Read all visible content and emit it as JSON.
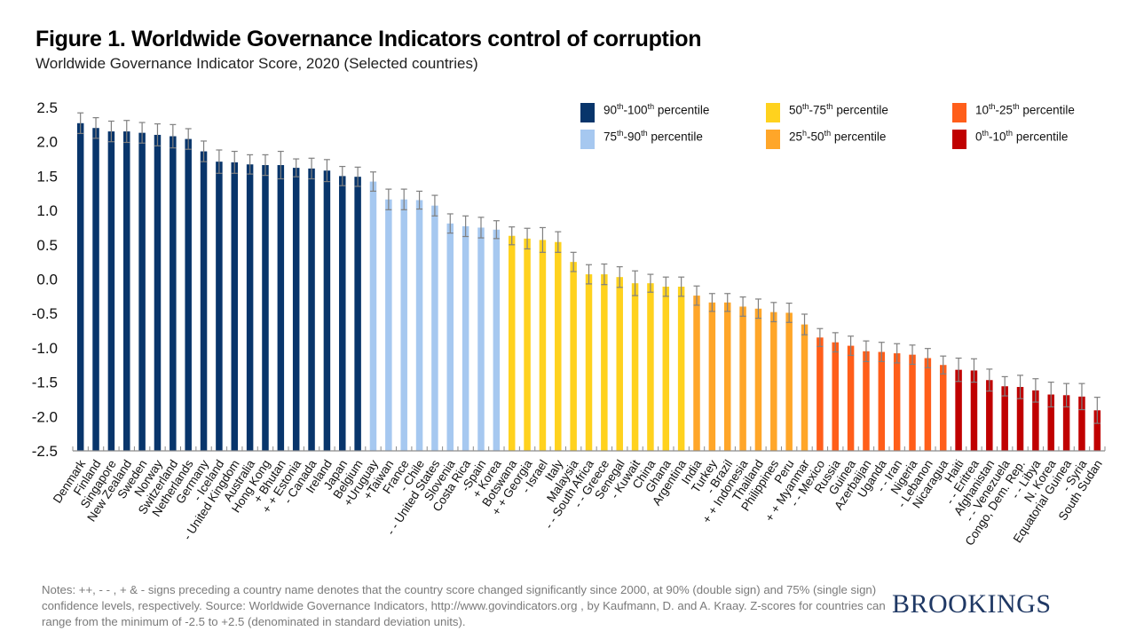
{
  "header": {
    "title": "Figure 1. Worldwide Governance Indicators control of corruption",
    "subtitle": "Worldwide Governance Indicator Score, 2020 (Selected countries)"
  },
  "footer": {
    "notes": "Notes: ++, - - , + & -  signs preceding a country name denotes that the country score changed significantly since 2000, at 90% (double sign) and 75% (single sign) confidence levels, respectively.  Source: Worldwide Governance Indicators, http://www.govindicators.org , by  Kaufmann, D. and A. Kraay. Z-scores for countries can range from the minimum of -2.5 to +2.5 (denominated in standard deviation units).",
    "brand": "BROOKINGS"
  },
  "chart_data": {
    "type": "bar",
    "title": "Figure 1. Worldwide Governance Indicators control of corruption",
    "subtitle": "Worldwide Governance Indicator Score, 2020 (Selected countries)",
    "xlabel": "",
    "ylabel": "",
    "ylim": [
      -2.5,
      2.5
    ],
    "yticks": [
      "2.5",
      "2.0",
      "1.5",
      "1.0",
      "0.5",
      "0.0",
      "-0.5",
      "-1.0",
      "-1.5",
      "-2.0",
      "-2.5"
    ],
    "ytick_values": [
      2.5,
      2.0,
      1.5,
      1.0,
      0.5,
      0.0,
      -0.5,
      -1.0,
      -1.5,
      -2.0,
      -2.5
    ],
    "grid": false,
    "legend_position": "top-right",
    "error_bars": true,
    "error_bar_color": "#808080",
    "groups": [
      {
        "key": "p90",
        "label_base": "90",
        "label_sup1": "th",
        "label_mid": "-100",
        "label_sup2": "th",
        "label_end": " percentile",
        "color": "#08356B"
      },
      {
        "key": "p75",
        "label_base": "75",
        "label_sup1": "th",
        "label_mid": "-90",
        "label_sup2": "th",
        "label_end": " percentile",
        "color": "#A6C8F0"
      },
      {
        "key": "p50",
        "label_base": "50",
        "label_sup1": "th",
        "label_mid": "-75",
        "label_sup2": "th",
        "label_end": " percentile",
        "color": "#FFD21E"
      },
      {
        "key": "p25",
        "label_base": "25",
        "label_sup1": "h",
        "label_mid": "-50",
        "label_sup2": "th",
        "label_end": " percentile",
        "color": "#FFA629"
      },
      {
        "key": "p10",
        "label_base": "10",
        "label_sup1": "th",
        "label_mid": "-25",
        "label_sup2": "th",
        "label_end": " percentile",
        "color": "#FF5E1A"
      },
      {
        "key": "p0",
        "label_base": "0",
        "label_sup1": "th",
        "label_mid": "-10",
        "label_sup2": "th",
        "label_end": " percentile",
        "color": "#C00000"
      }
    ],
    "categories": [
      "Denmark",
      "Finland",
      "Singapore",
      "New Zealand",
      "Sweden",
      "Norway",
      "Switzerland",
      "Netherlands",
      "Germany",
      "- Iceland",
      "- United Kingdom",
      "Australia",
      "Hong Kong",
      "+ Bhutan",
      "+ + Estonia",
      "- Canada",
      "Ireland",
      "Japan",
      "Belgium",
      "+Uruguay",
      "+Taiwan",
      "France",
      "- Chile",
      "- - United States",
      "Slovenia",
      "Costa Rica",
      "-Spain",
      "+ Korea",
      "Botswana",
      "+ + Georgia",
      "- Israel",
      "Italy",
      "Malaysia",
      "- - South Africa",
      "- - Greece",
      "Senegal",
      "- Kuwait",
      "China",
      "Ghana",
      "Argentina",
      "India",
      "Turkey",
      "- Brazil",
      "+ + Indonesia",
      "Thailand",
      "Philippines",
      "Peru",
      "+ + Myanmar",
      "- - Mexico",
      "Russia",
      "Guinea",
      "Azerbaijan",
      "Uganda",
      "- - Iran",
      "Nigeria",
      "- Lebanon",
      "Nicaragua",
      "Haiti",
      "- - Eritrea",
      "Afghanistan",
      "- - Venezuela",
      "Congo, Dem. Rep.",
      "- - Libya",
      "N. Korea",
      "Equatorial Guinea",
      "- Syria",
      "South Sudan"
    ],
    "values": [
      2.27,
      2.2,
      2.15,
      2.15,
      2.13,
      2.1,
      2.08,
      2.04,
      1.86,
      1.71,
      1.7,
      1.67,
      1.66,
      1.66,
      1.62,
      1.61,
      1.58,
      1.5,
      1.49,
      1.42,
      1.16,
      1.16,
      1.15,
      1.07,
      0.81,
      0.77,
      0.75,
      0.72,
      0.63,
      0.59,
      0.57,
      0.54,
      0.25,
      0.07,
      0.07,
      0.03,
      -0.06,
      -0.06,
      -0.11,
      -0.11,
      -0.24,
      -0.34,
      -0.34,
      -0.4,
      -0.43,
      -0.48,
      -0.49,
      -0.66,
      -0.85,
      -0.92,
      -0.97,
      -1.05,
      -1.06,
      -1.08,
      -1.1,
      -1.15,
      -1.25,
      -1.32,
      -1.33,
      -1.47,
      -1.56,
      -1.57,
      -1.62,
      -1.68,
      -1.69,
      -1.71,
      -1.91
    ],
    "error_margins": [
      0.15,
      0.15,
      0.15,
      0.16,
      0.15,
      0.16,
      0.17,
      0.15,
      0.15,
      0.17,
      0.16,
      0.14,
      0.15,
      0.2,
      0.13,
      0.15,
      0.16,
      0.14,
      0.14,
      0.14,
      0.15,
      0.15,
      0.13,
      0.15,
      0.14,
      0.15,
      0.15,
      0.13,
      0.13,
      0.15,
      0.18,
      0.15,
      0.14,
      0.14,
      0.15,
      0.15,
      0.18,
      0.13,
      0.14,
      0.14,
      0.14,
      0.13,
      0.13,
      0.14,
      0.14,
      0.14,
      0.14,
      0.15,
      0.13,
      0.14,
      0.14,
      0.15,
      0.14,
      0.14,
      0.14,
      0.14,
      0.13,
      0.17,
      0.17,
      0.16,
      0.14,
      0.17,
      0.17,
      0.18,
      0.17,
      0.19,
      0.19
    ],
    "percentile_group": [
      "p90",
      "p90",
      "p90",
      "p90",
      "p90",
      "p90",
      "p90",
      "p90",
      "p90",
      "p90",
      "p90",
      "p90",
      "p90",
      "p90",
      "p90",
      "p90",
      "p90",
      "p90",
      "p90",
      "p75",
      "p75",
      "p75",
      "p75",
      "p75",
      "p75",
      "p75",
      "p75",
      "p75",
      "p50",
      "p50",
      "p50",
      "p50",
      "p50",
      "p50",
      "p50",
      "p50",
      "p50",
      "p50",
      "p50",
      "p50",
      "p25",
      "p25",
      "p25",
      "p25",
      "p25",
      "p25",
      "p25",
      "p25",
      "p10",
      "p10",
      "p10",
      "p10",
      "p10",
      "p10",
      "p10",
      "p10",
      "p10",
      "p0",
      "p0",
      "p0",
      "p0",
      "p0",
      "p0",
      "p0",
      "p0",
      "p0",
      "p0"
    ]
  }
}
